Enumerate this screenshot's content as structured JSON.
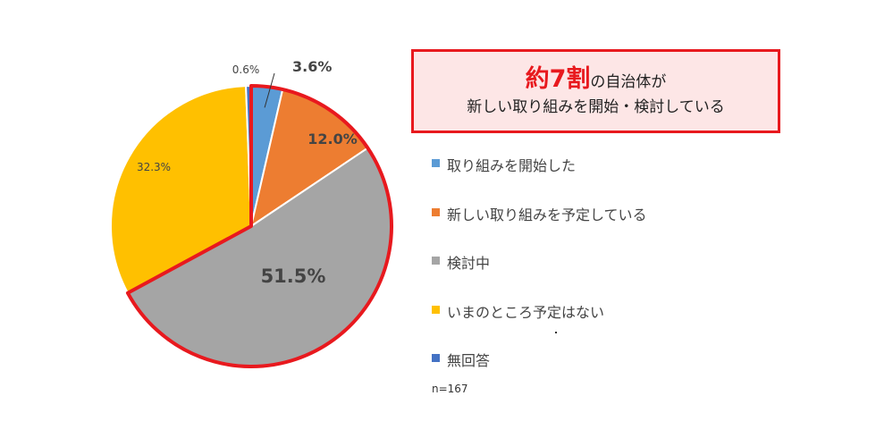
{
  "chart_data": {
    "type": "pie",
    "title": "",
    "n_label": "n=167",
    "slices": [
      {
        "name": "取り組みを開始した",
        "value": 3.6,
        "label": "3.6%",
        "color": "#5b9bd5"
      },
      {
        "name": "新しい取り組みを予定している",
        "value": 12.0,
        "label": "12.0%",
        "color": "#ed7d31"
      },
      {
        "name": "検討中",
        "value": 51.5,
        "label": "51.5%",
        "color": "#a5a5a5"
      },
      {
        "name": "いまのところ予定はない",
        "value": 32.3,
        "label": "32.3%",
        "color": "#ffc000"
      },
      {
        "name": "無回答",
        "value": 0.6,
        "label": "0.6%",
        "color": "#4472c4"
      }
    ],
    "highlight_color": "#e8191e",
    "legend_position": "right"
  },
  "callout": {
    "emphasis": "約7割",
    "line1_rest": "の自治体が",
    "line2": "新しい取り組みを開始・検討している"
  }
}
